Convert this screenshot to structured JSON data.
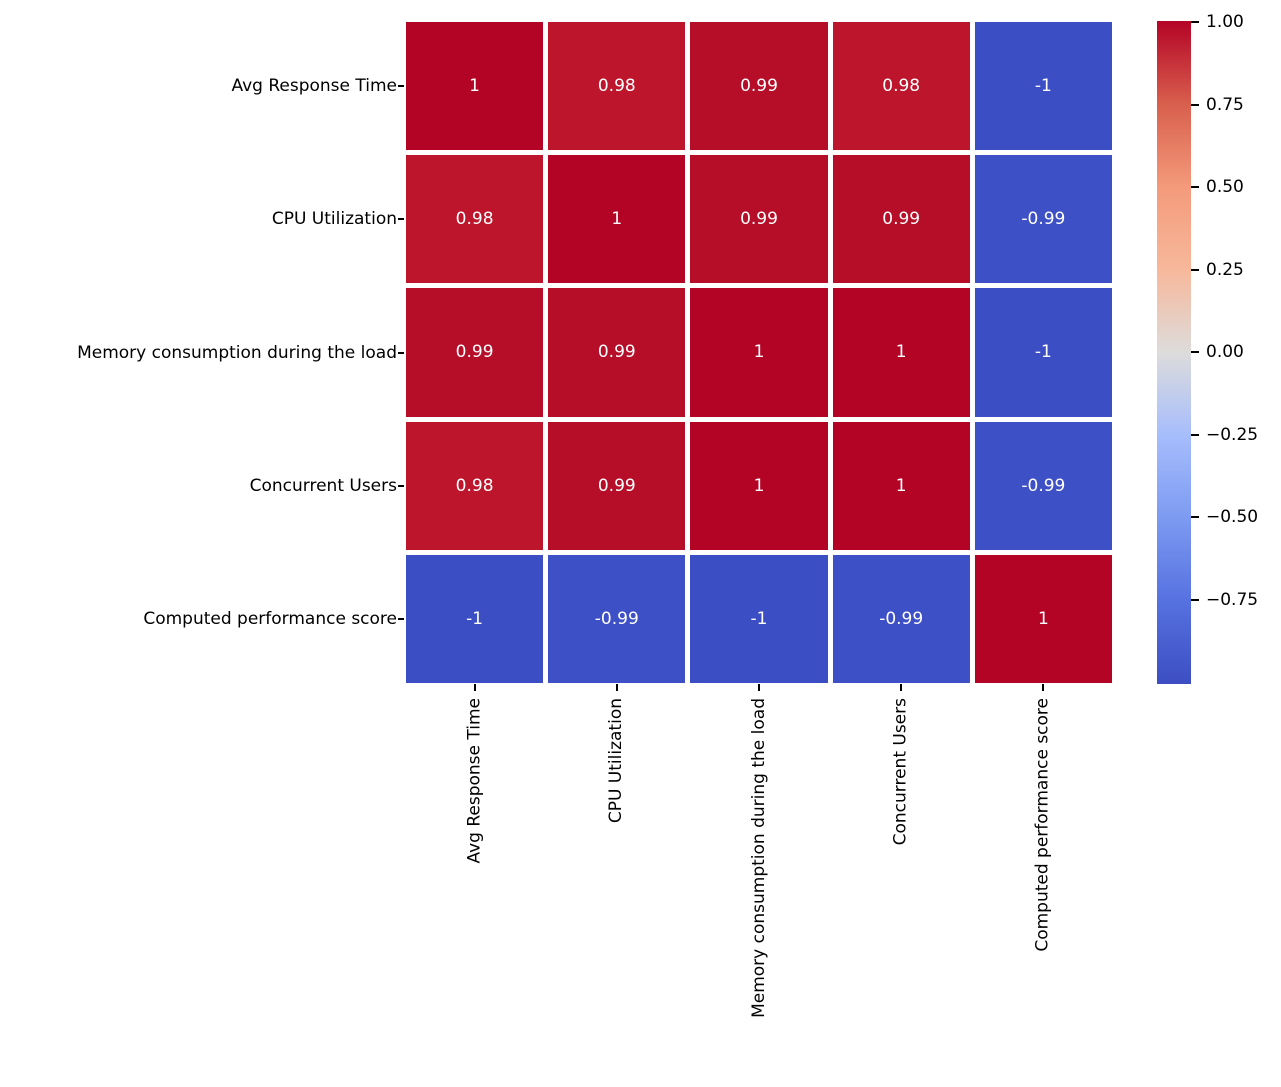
{
  "figure": {
    "background": "#ffffff"
  },
  "chart_data": {
    "type": "heatmap",
    "title": "",
    "categories": [
      "Avg Response Time",
      "CPU Utilization",
      "Memory consumption during the load",
      "Concurrent Users",
      "Computed performance score"
    ],
    "matrix": [
      [
        1,
        0.98,
        0.99,
        0.98,
        -1
      ],
      [
        0.98,
        1,
        0.99,
        0.99,
        -0.99
      ],
      [
        0.99,
        0.99,
        1,
        1,
        -1
      ],
      [
        0.98,
        0.99,
        1,
        1,
        -0.99
      ],
      [
        -1,
        -0.99,
        -1,
        -0.99,
        1
      ]
    ],
    "cell_labels": [
      [
        "1",
        "0.98",
        "0.99",
        "0.98",
        "-1"
      ],
      [
        "0.98",
        "1",
        "0.99",
        "0.99",
        "-0.99"
      ],
      [
        "0.99",
        "0.99",
        "1",
        "1",
        "-1"
      ],
      [
        "0.98",
        "0.99",
        "1",
        "1",
        "-0.99"
      ],
      [
        "-1",
        "-0.99",
        "-1",
        "-0.99",
        "1"
      ]
    ],
    "colormap": "coolwarm",
    "colorbar_ticks": [
      "1.00",
      "0.75",
      "0.50",
      "0.25",
      "0.00",
      "−0.25",
      "−0.50",
      "−0.75"
    ],
    "annotation_text_color": "#ffffff",
    "axis_text_color": "#000000",
    "grid_line_color": "#ffffff",
    "value_colors": {
      "1": "#b40426",
      "0.99": "#b60d28",
      "0.98": "#bd162c",
      "-0.99": "#3e50c5",
      "-1": "#3c4ec3"
    },
    "colormap_stops": [
      {
        "v": 1.0,
        "c": "#b40426"
      },
      {
        "v": 0.75,
        "c": "#d85f4d"
      },
      {
        "v": 0.5,
        "c": "#f49a7b"
      },
      {
        "v": 0.25,
        "c": "#f7b89b"
      },
      {
        "v": 0.0,
        "c": "#dddcdc"
      },
      {
        "v": -0.25,
        "c": "#a6bdfc"
      },
      {
        "v": -0.5,
        "c": "#7c9af1"
      },
      {
        "v": -0.75,
        "c": "#5671e0"
      },
      {
        "v": -0.997,
        "c": "#3c4ec2"
      }
    ]
  }
}
